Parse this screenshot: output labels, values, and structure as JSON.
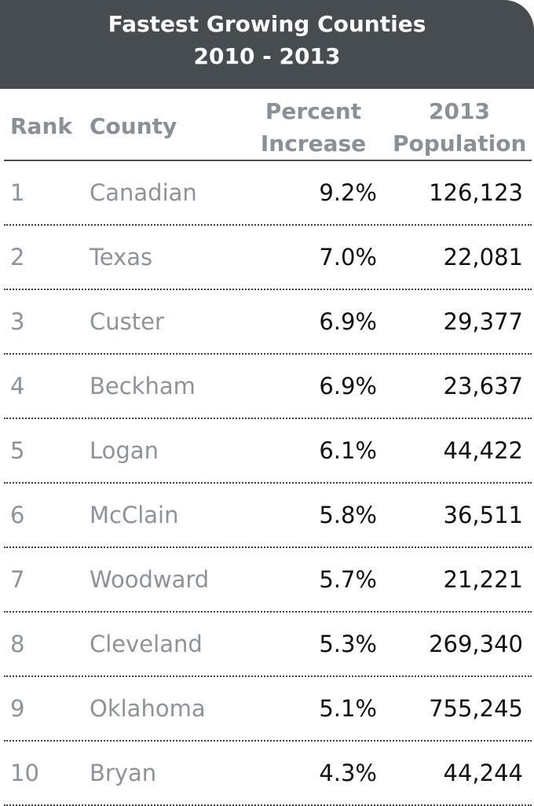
{
  "title": {
    "line1": "Fastest Growing Counties",
    "line2": "2010 - 2013"
  },
  "colors": {
    "header_bg": "#474c50",
    "header_text": "#ffffff",
    "muted_text": "#8d9399",
    "value_text": "#111111"
  },
  "columns": {
    "rank": "Rank",
    "county": "County",
    "percent_line1": "Percent",
    "percent_line2": "Increase",
    "population_line1": "2013",
    "population_line2": "Population"
  },
  "rows": [
    {
      "rank": "1",
      "county": "Canadian",
      "percent": "9.2%",
      "population": "126,123"
    },
    {
      "rank": "2",
      "county": "Texas",
      "percent": "7.0%",
      "population": "22,081"
    },
    {
      "rank": "3",
      "county": "Custer",
      "percent": "6.9%",
      "population": "29,377"
    },
    {
      "rank": "4",
      "county": "Beckham",
      "percent": "6.9%",
      "population": "23,637"
    },
    {
      "rank": "5",
      "county": "Logan",
      "percent": "6.1%",
      "population": "44,422"
    },
    {
      "rank": "6",
      "county": "McClain",
      "percent": "5.8%",
      "population": "36,511"
    },
    {
      "rank": "7",
      "county": "Woodward",
      "percent": "5.7%",
      "population": "21,221"
    },
    {
      "rank": "8",
      "county": "Cleveland",
      "percent": "5.3%",
      "population": "269,340"
    },
    {
      "rank": "9",
      "county": "Oklahoma",
      "percent": "5.1%",
      "population": "755,245"
    },
    {
      "rank": "10",
      "county": "Bryan",
      "percent": "4.3%",
      "population": "44,244"
    }
  ]
}
